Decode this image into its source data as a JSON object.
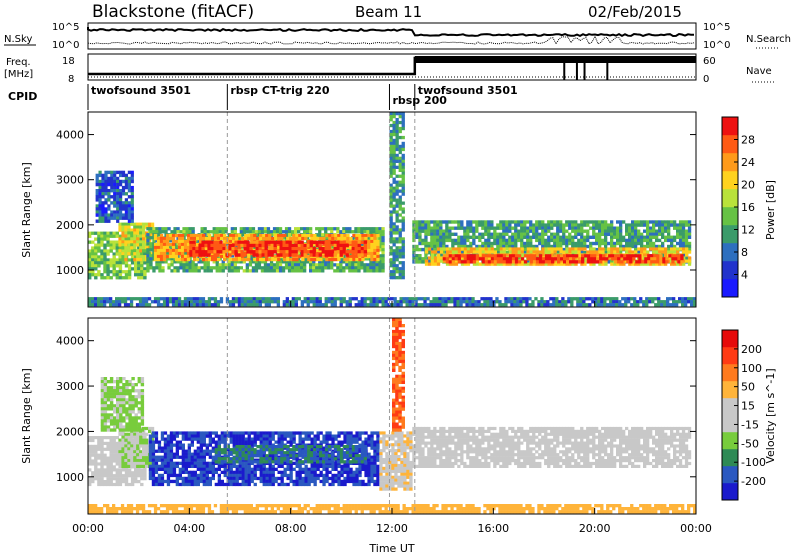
{
  "header": {
    "title": "Blackstone (fitACF)",
    "beam": "Beam 11",
    "date": "02/Feb/2015"
  },
  "labels": {
    "n_sky": "N.Sky",
    "n_search": "N.Search",
    "freq": "Freq.",
    "mhz": "[MHz]",
    "nave": "Nave",
    "cpid": "CPID",
    "n_left_top": "10^5",
    "n_left_bot": "10^0",
    "n_right_top": "10^5",
    "n_right_bot": "10^0",
    "freq_top": "18",
    "freq_bot": "8",
    "nave_top": "60",
    "nave_bot": "0"
  },
  "cpid_segments": [
    {
      "label": "twofsound 3501",
      "start_hour": 0.0,
      "end_hour": 5.5
    },
    {
      "label": "rbsp CT-trig 220",
      "start_hour": 5.5,
      "end_hour": 11.9
    },
    {
      "label": "rbsp 200",
      "start_hour": 11.9,
      "end_hour": 12.9
    },
    {
      "label": "twofsound 3501",
      "start_hour": 12.9,
      "end_hour": 24.0
    }
  ],
  "colors": {
    "power_scale": [
      "#1a1aff",
      "#2233cc",
      "#2d6fbf",
      "#3a9b6a",
      "#66c244",
      "#b9e23a",
      "#ffd21e",
      "#ff9a1a",
      "#ff5a14",
      "#ee1111"
    ],
    "velocity_scale": [
      "#1a1acc",
      "#2a58c0",
      "#2e8a55",
      "#78cc3c",
      "#c8c8c8",
      "#c8c8c8",
      "#ffb43a",
      "#ff7a1e",
      "#ff3a14",
      "#e60a0a"
    ],
    "gray_band": "#c8c8c8"
  },
  "chart_data": [
    {
      "type": "heatmap",
      "name": "power",
      "xlabel": "",
      "ylabel": "Slant Range [km]",
      "xlim": [
        0,
        24
      ],
      "ylim": [
        180,
        4500
      ],
      "yticks": [
        "1000",
        "2000",
        "3000",
        "4000"
      ],
      "colorbar_label": "Power [dB]",
      "colorbar_ticks": [
        "4",
        "8",
        "12",
        "16",
        "20",
        "24",
        "28"
      ],
      "colorbar_range": [
        0,
        30
      ],
      "bands": [
        {
          "x0": 0.0,
          "x1": 2.3,
          "y0": 800,
          "y1": 1850,
          "v": 14
        },
        {
          "x0": 1.2,
          "x1": 2.6,
          "y0": 1200,
          "y1": 2050,
          "v": 18
        },
        {
          "x0": 2.3,
          "x1": 11.7,
          "y0": 950,
          "y1": 1950,
          "v": 12
        },
        {
          "x0": 2.6,
          "x1": 11.5,
          "y0": 1200,
          "y1": 1800,
          "v": 22
        },
        {
          "x0": 4.0,
          "x1": 11.0,
          "y0": 1300,
          "y1": 1650,
          "v": 27
        },
        {
          "x0": 12.8,
          "x1": 23.8,
          "y0": 1150,
          "y1": 2100,
          "v": 11
        },
        {
          "x0": 13.3,
          "x1": 23.8,
          "y0": 1100,
          "y1": 1500,
          "v": 20
        },
        {
          "x0": 14.0,
          "x1": 23.5,
          "y0": 1150,
          "y1": 1350,
          "v": 27
        },
        {
          "x0": 0.3,
          "x1": 1.8,
          "y0": 2050,
          "y1": 3200,
          "v": 6
        },
        {
          "x0": 11.9,
          "x1": 12.5,
          "y0": 800,
          "y1": 4500,
          "v": 10
        },
        {
          "x0": 0.0,
          "x1": 24.0,
          "y0": 200,
          "y1": 400,
          "v": 8
        }
      ]
    },
    {
      "type": "heatmap",
      "name": "velocity",
      "xlabel": "Time UT",
      "ylabel": "Slant Range [km]",
      "xlim": [
        0,
        24
      ],
      "ylim": [
        180,
        4500
      ],
      "yticks": [
        "1000",
        "2000",
        "3000",
        "4000"
      ],
      "xticks": [
        "00:00",
        "04:00",
        "08:00",
        "12:00",
        "16:00",
        "20:00",
        "00:00"
      ],
      "colorbar_label": "Velocity [m s^-1]",
      "colorbar_ticks": [
        "200",
        "100",
        "50",
        "15",
        "-15",
        "-50",
        "-100",
        "-200"
      ],
      "colorbar_range": [
        -250,
        250
      ],
      "bands": [
        {
          "x0": 0.0,
          "x1": 2.3,
          "y0": 800,
          "y1": 1900,
          "v": 0
        },
        {
          "x0": 1.2,
          "x1": 2.6,
          "y0": 1200,
          "y1": 2100,
          "v": -50
        },
        {
          "x0": 2.4,
          "x1": 11.5,
          "y0": 800,
          "y1": 2000,
          "v": -200
        },
        {
          "x0": 5.0,
          "x1": 11.0,
          "y0": 1300,
          "y1": 1700,
          "v": -150
        },
        {
          "x0": 11.5,
          "x1": 12.8,
          "y0": 700,
          "y1": 2000,
          "v": 40
        },
        {
          "x0": 12.8,
          "x1": 23.8,
          "y0": 1200,
          "y1": 2100,
          "v": 0
        },
        {
          "x0": 0.5,
          "x1": 2.2,
          "y0": 2000,
          "y1": 3200,
          "v": -60
        },
        {
          "x0": 12.0,
          "x1": 12.5,
          "y0": 2000,
          "y1": 4500,
          "v": 150
        },
        {
          "x0": 0.0,
          "x1": 24.0,
          "y0": 200,
          "y1": 400,
          "v": 80
        }
      ]
    }
  ]
}
